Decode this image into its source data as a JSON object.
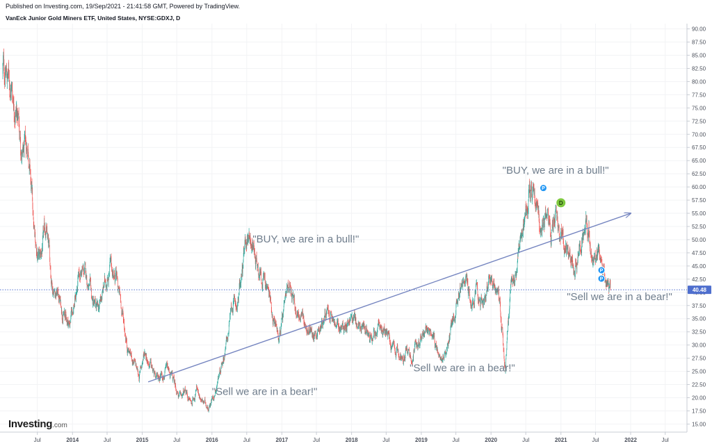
{
  "header": {
    "published": "Published on Investing.com, 19/Sep/2021 - 21:41:58 GMT, Powered by TradingView.",
    "symbol": "VanEck Junior Gold Miners ETF, United States, NYSE:GDXJ, D"
  },
  "logo": {
    "word": "Investing",
    "domain": ".com"
  },
  "colors": {
    "up": "#26a69a",
    "down": "#ef5350",
    "trendline": "#7585c0",
    "last_price_line": "#4f6fce",
    "annotation": "#6f7d8c",
    "marker_p": "#2196f3",
    "marker_d": "#7ec93f"
  },
  "chart_data": {
    "type": "candlestick",
    "x_tick_labels": [
      "Jul",
      "2014",
      "Jul",
      "2015",
      "Jul",
      "2016",
      "Jul",
      "2017",
      "Jul",
      "2018",
      "Jul",
      "2019",
      "Jul",
      "2020",
      "Jul",
      "2021",
      "Jul",
      "2022",
      "Jul"
    ],
    "x_tick_dates": [
      "2013-07",
      "2014-01",
      "2014-07",
      "2015-01",
      "2015-07",
      "2016-01",
      "2016-07",
      "2017-01",
      "2017-07",
      "2018-01",
      "2018-07",
      "2019-01",
      "2019-07",
      "2020-01",
      "2020-07",
      "2021-01",
      "2021-07",
      "2022-01",
      "2022-07"
    ],
    "y_tick_labels": [
      "15.00",
      "17.50",
      "20.00",
      "22.50",
      "25.00",
      "27.50",
      "30.00",
      "32.50",
      "35.00",
      "37.50",
      "40.00",
      "42.50",
      "45.00",
      "47.50",
      "50.00",
      "52.50",
      "55.00",
      "57.50",
      "60.00",
      "62.50",
      "65.00",
      "67.50",
      "70.00",
      "72.50",
      "75.00",
      "77.50",
      "80.00",
      "82.50",
      "85.00",
      "87.50",
      "90.00"
    ],
    "ylim": [
      14.0,
      91.0
    ],
    "last_price": "40.48",
    "approx_closes": [
      [
        "2013-01",
        82
      ],
      [
        "2013-02",
        79
      ],
      [
        "2013-03",
        75
      ],
      [
        "2013-04",
        65
      ],
      [
        "2013-05",
        68
      ],
      [
        "2013-06",
        50
      ],
      [
        "2013-07",
        46
      ],
      [
        "2013-08",
        52
      ],
      [
        "2013-09",
        42
      ],
      [
        "2013-10",
        40
      ],
      [
        "2013-11",
        36
      ],
      [
        "2013-12",
        34
      ],
      [
        "2014-01",
        39
      ],
      [
        "2014-02",
        44
      ],
      [
        "2014-03",
        43
      ],
      [
        "2014-04",
        38
      ],
      [
        "2014-05",
        36
      ],
      [
        "2014-06",
        41
      ],
      [
        "2014-07",
        45
      ],
      [
        "2014-08",
        43
      ],
      [
        "2014-09",
        37
      ],
      [
        "2014-10",
        30
      ],
      [
        "2014-11",
        27
      ],
      [
        "2014-12",
        24
      ],
      [
        "2015-01",
        29
      ],
      [
        "2015-02",
        26
      ],
      [
        "2015-03",
        23
      ],
      [
        "2015-04",
        25
      ],
      [
        "2015-05",
        25
      ],
      [
        "2015-06",
        23
      ],
      [
        "2015-07",
        20
      ],
      [
        "2015-08",
        21
      ],
      [
        "2015-09",
        19
      ],
      [
        "2015-10",
        22
      ],
      [
        "2015-11",
        19
      ],
      [
        "2015-12",
        18.5
      ],
      [
        "2016-01",
        21
      ],
      [
        "2016-02",
        26
      ],
      [
        "2016-03",
        30
      ],
      [
        "2016-04",
        37
      ],
      [
        "2016-05",
        38
      ],
      [
        "2016-06",
        46
      ],
      [
        "2016-07",
        52
      ],
      [
        "2016-08",
        47
      ],
      [
        "2016-09",
        44
      ],
      [
        "2016-10",
        41
      ],
      [
        "2016-11",
        36
      ],
      [
        "2016-12",
        32
      ],
      [
        "2017-01",
        36
      ],
      [
        "2017-02",
        42
      ],
      [
        "2017-03",
        37
      ],
      [
        "2017-04",
        35
      ],
      [
        "2017-05",
        33
      ],
      [
        "2017-06",
        32
      ],
      [
        "2017-07",
        33
      ],
      [
        "2017-08",
        36
      ],
      [
        "2017-09",
        35
      ],
      [
        "2017-10",
        33
      ],
      [
        "2017-11",
        33
      ],
      [
        "2017-12",
        35
      ],
      [
        "2018-01",
        35
      ],
      [
        "2018-02",
        33
      ],
      [
        "2018-03",
        33
      ],
      [
        "2018-04",
        33
      ],
      [
        "2018-05",
        33
      ],
      [
        "2018-06",
        33
      ],
      [
        "2018-07",
        31
      ],
      [
        "2018-08",
        28
      ],
      [
        "2018-09",
        28
      ],
      [
        "2018-10",
        29
      ],
      [
        "2018-11",
        28
      ],
      [
        "2018-12",
        31
      ],
      [
        "2019-01",
        33
      ],
      [
        "2019-02",
        32
      ],
      [
        "2019-03",
        30
      ],
      [
        "2019-04",
        29
      ],
      [
        "2019-05",
        29
      ],
      [
        "2019-06",
        35
      ],
      [
        "2019-07",
        41
      ],
      [
        "2019-08",
        42
      ],
      [
        "2019-09",
        38
      ],
      [
        "2019-10",
        39
      ],
      [
        "2019-11",
        38
      ],
      [
        "2019-12",
        41
      ],
      [
        "2020-01",
        41
      ],
      [
        "2020-02",
        39
      ],
      [
        "2020-03",
        25
      ],
      [
        "2020-04",
        42
      ],
      [
        "2020-05",
        44
      ],
      [
        "2020-06",
        50
      ],
      [
        "2020-07",
        60
      ],
      [
        "2020-08",
        60
      ],
      [
        "2020-09",
        53
      ],
      [
        "2020-10",
        54
      ],
      [
        "2020-11",
        51
      ],
      [
        "2020-12",
        54
      ],
      [
        "2021-01",
        50
      ],
      [
        "2021-02",
        49
      ],
      [
        "2021-03",
        45
      ],
      [
        "2021-04",
        48
      ],
      [
        "2021-05",
        55
      ],
      [
        "2021-06",
        47
      ],
      [
        "2021-07",
        46
      ],
      [
        "2021-08",
        43
      ],
      [
        "2021-09",
        40.48
      ]
    ],
    "trendline": {
      "start": [
        "2015-02",
        23.0
      ],
      "end": [
        "2022-01",
        55.0
      ]
    },
    "annotations": [
      {
        "text": "\"BUY, we are in a bull!\"",
        "date": "2016-08",
        "price": 49.5
      },
      {
        "text": "\"BUY, we are in a bull!\"",
        "date": "2020-03",
        "price": 62.5
      },
      {
        "text": "\"Sell we are in a bear!\"",
        "date": "2016-01",
        "price": 20.5
      },
      {
        "text": "\"Sell we are in a bear!\"",
        "date": "2018-11",
        "price": 25.0
      },
      {
        "text": "\"Sell we are in a bear!\"",
        "date": "2021-02",
        "price": 38.5
      }
    ],
    "markers": [
      {
        "label": "P",
        "date": "2020-10",
        "price": 59.8,
        "color_key": "marker_p"
      },
      {
        "label": "D",
        "date": "2021-01",
        "price": 57.0,
        "color_key": "marker_d"
      },
      {
        "label": "P",
        "date": "2021-08",
        "price": 44.2,
        "color_key": "marker_p"
      },
      {
        "label": "P",
        "date": "2021-08",
        "price": 42.6,
        "color_key": "marker_p"
      }
    ]
  }
}
